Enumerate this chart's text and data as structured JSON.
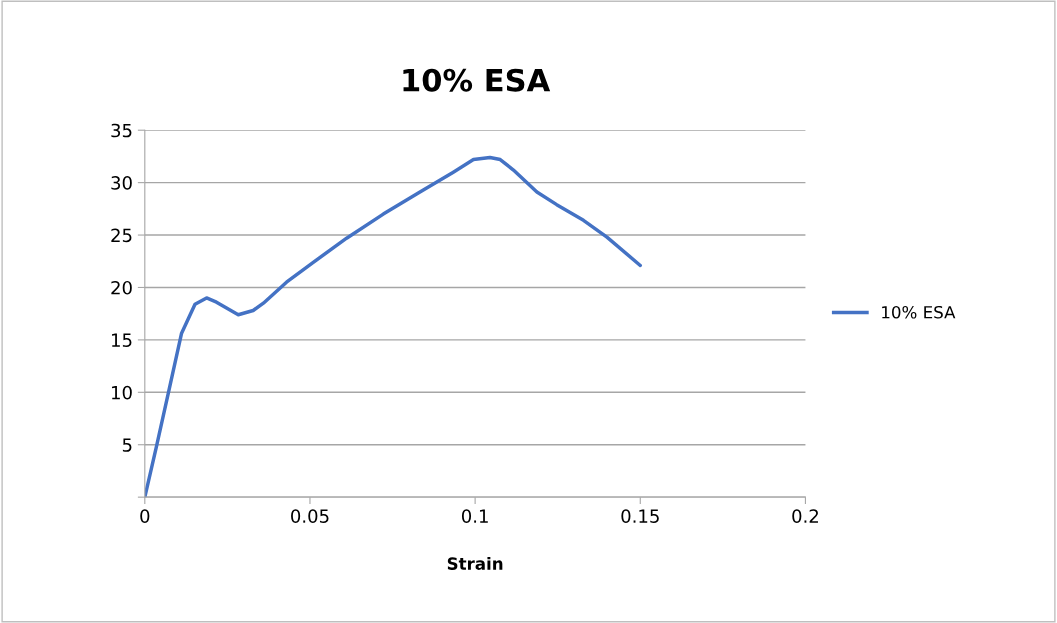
{
  "chart_data": {
    "type": "line",
    "title": "10% ESA",
    "xlabel": "Strain",
    "x": [
      0,
      0.0035,
      0.0071,
      0.0111,
      0.0152,
      0.0187,
      0.0217,
      0.0283,
      0.0328,
      0.0359,
      0.0429,
      0.051,
      0.0611,
      0.0722,
      0.0833,
      0.0934,
      0.0995,
      0.1045,
      0.1076,
      0.1116,
      0.1187,
      0.1247,
      0.1328,
      0.1399,
      0.15
    ],
    "series": [
      {
        "name": "10% ESA",
        "color": "#4472c4",
        "values": [
          0,
          4.8,
          9.9,
          15.6,
          18.4,
          19.0,
          18.6,
          17.4,
          17.8,
          18.5,
          20.5,
          22.4,
          24.7,
          27.0,
          29.1,
          31.0,
          32.2,
          32.4,
          32.2,
          31.2,
          29.1,
          27.9,
          26.4,
          24.8,
          22.1
        ]
      }
    ],
    "xlim": [
      0,
      0.2
    ],
    "xticks": [
      0,
      0.05,
      0.1,
      0.15,
      0.2
    ],
    "ylim": [
      0,
      35
    ],
    "yticks": [
      {
        "value": 0,
        "label": null
      },
      5,
      10,
      15,
      20,
      25,
      30,
      35
    ],
    "grid": "y",
    "legend": "right",
    "marker": "none",
    "line_style": "solid"
  }
}
